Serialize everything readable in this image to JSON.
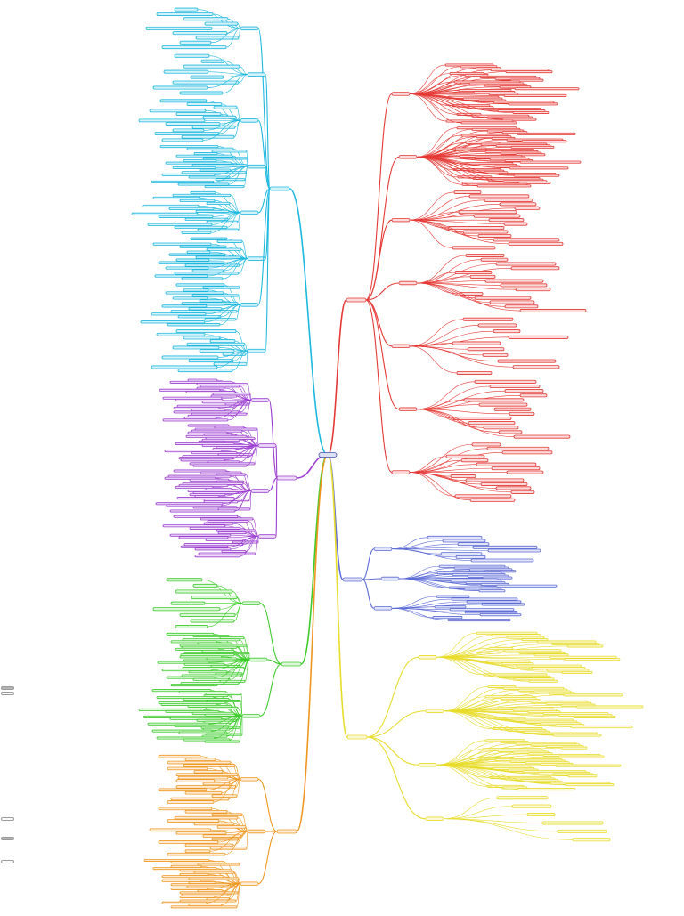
{
  "canvas": {
    "background": "#ffffff"
  },
  "central_topic": {
    "label": "",
    "color": "#3f51b5"
  },
  "main_branches": [
    {
      "id": "branch-cyan",
      "label": "",
      "color": "#1cb8e0",
      "side": "left",
      "groups": [
        {
          "label": "",
          "children": [
            "",
            "",
            "",
            "",
            "",
            "",
            "",
            "",
            ""
          ]
        },
        {
          "label": "",
          "children": [
            "",
            "",
            "",
            "",
            "",
            "",
            "",
            ""
          ]
        },
        {
          "label": "",
          "children": [
            "",
            "",
            "",
            "",
            "",
            "",
            "",
            "",
            "",
            "",
            "",
            "",
            ""
          ]
        },
        {
          "label": "",
          "children": [
            "",
            "",
            "",
            "",
            "",
            "",
            "",
            "",
            "",
            "",
            "",
            "",
            "",
            "",
            "",
            "",
            "",
            ""
          ]
        },
        {
          "label": "",
          "children": [
            "",
            "",
            "",
            "",
            "",
            "",
            "",
            "",
            "",
            "",
            "",
            "",
            "",
            "",
            "",
            ""
          ]
        },
        {
          "label": "",
          "children": [
            "",
            "",
            "",
            "",
            "",
            "",
            "",
            "",
            "",
            "",
            "",
            "",
            "",
            "",
            "",
            ""
          ]
        },
        {
          "label": "",
          "children": [
            "",
            "",
            "",
            "",
            "",
            "",
            "",
            "",
            "",
            "",
            "",
            "",
            "",
            "",
            "",
            ""
          ]
        },
        {
          "label": "",
          "children": [
            "",
            "",
            "",
            "",
            "",
            "",
            "",
            "",
            "",
            "",
            "",
            "",
            ""
          ]
        }
      ]
    },
    {
      "id": "branch-purple",
      "label": "",
      "color": "#9c3fd0",
      "side": "left",
      "groups": [
        {
          "label": "",
          "children": [
            "",
            "",
            "",
            "",
            "",
            "",
            "",
            "",
            "",
            "",
            "",
            "",
            "",
            "",
            "",
            "",
            "",
            "",
            "",
            "",
            ""
          ]
        },
        {
          "label": "",
          "children": [
            "",
            "",
            "",
            "",
            "",
            "",
            "",
            "",
            "",
            "",
            "",
            "",
            "",
            "",
            "",
            "",
            "",
            "",
            "",
            "",
            "",
            "",
            ""
          ]
        },
        {
          "label": "",
          "children": [
            "",
            "",
            "",
            "",
            "",
            "",
            "",
            "",
            "",
            "",
            "",
            "",
            "",
            "",
            "",
            "",
            "",
            "",
            "",
            "",
            "",
            "",
            ""
          ]
        },
        {
          "label": "",
          "children": [
            "",
            "",
            "",
            "",
            "",
            "",
            "",
            "",
            "",
            "",
            "",
            "",
            "",
            "",
            "",
            "",
            "",
            ""
          ]
        }
      ]
    },
    {
      "id": "branch-green",
      "label": "",
      "color": "#3ccc2a",
      "side": "left",
      "groups": [
        {
          "label": "",
          "children": [
            "",
            "",
            "",
            "",
            "",
            "",
            "",
            "",
            ""
          ]
        },
        {
          "label": "",
          "children": [
            "",
            "",
            "",
            "",
            "",
            "",
            "",
            "",
            "",
            "",
            "",
            "",
            "",
            "",
            "",
            "",
            "",
            "",
            "",
            "",
            "",
            "",
            "",
            "",
            "",
            "",
            "",
            ""
          ]
        },
        {
          "label": "",
          "children": [
            "",
            "",
            "",
            "",
            "",
            "",
            "",
            "",
            "",
            "",
            "",
            "",
            "",
            "",
            "",
            "",
            "",
            "",
            "",
            "",
            "",
            "",
            "",
            "",
            "",
            "",
            "",
            "",
            "",
            ""
          ]
        }
      ]
    },
    {
      "id": "branch-orange",
      "label": "",
      "color": "#f0961e",
      "side": "left",
      "groups": [
        {
          "label": "",
          "children": [
            "",
            "",
            "",
            "",
            "",
            "",
            "",
            "",
            "",
            "",
            "",
            "",
            "",
            "",
            "",
            ""
          ]
        },
        {
          "label": "",
          "children": [
            "",
            "",
            "",
            "",
            "",
            "",
            "",
            "",
            "",
            "",
            "",
            "",
            "",
            "",
            "",
            ""
          ]
        },
        {
          "label": "",
          "children": [
            "",
            "",
            "",
            "",
            "",
            "",
            "",
            "",
            "",
            "",
            "",
            "",
            "",
            "",
            "",
            "",
            "",
            "",
            "",
            "",
            "",
            "",
            "",
            ""
          ]
        }
      ]
    },
    {
      "id": "branch-red",
      "label": "",
      "color": "#e53935",
      "side": "right",
      "groups": [
        {
          "label": "",
          "children": [
            "",
            "",
            "",
            "",
            "",
            "",
            "",
            "",
            "",
            "",
            "",
            "",
            "",
            "",
            "",
            "",
            "",
            "",
            "",
            "",
            "",
            "",
            "",
            "",
            "",
            "",
            "",
            "",
            "",
            "",
            "",
            "",
            "",
            "",
            ""
          ]
        },
        {
          "label": "",
          "children": [
            "",
            "",
            "",
            "",
            "",
            "",
            "",
            "",
            "",
            "",
            "",
            "",
            "",
            "",
            "",
            "",
            "",
            "",
            "",
            "",
            "",
            "",
            "",
            "",
            "",
            "",
            "",
            "",
            "",
            "",
            "",
            "",
            "",
            "",
            "",
            "",
            "",
            "",
            "",
            ""
          ]
        },
        {
          "label": "",
          "children": [
            "",
            "",
            "",
            "",
            "",
            "",
            "",
            "",
            "",
            "",
            "",
            "",
            "",
            "",
            ""
          ]
        },
        {
          "label": "",
          "children": [
            "",
            "",
            "",
            "",
            "",
            "",
            "",
            "",
            "",
            "",
            "",
            "",
            "",
            ""
          ]
        },
        {
          "label": "",
          "children": [
            "",
            "",
            "",
            "",
            "",
            "",
            "",
            "",
            "",
            ""
          ]
        },
        {
          "label": "",
          "children": [
            "",
            "",
            "",
            "",
            "",
            "",
            "",
            "",
            "",
            "",
            "",
            "",
            ""
          ]
        },
        {
          "label": "",
          "children": [
            "",
            "",
            "",
            "",
            "",
            "",
            "",
            "",
            "",
            "",
            "",
            "",
            "",
            "",
            ""
          ]
        }
      ]
    },
    {
      "id": "branch-blue",
      "label": "",
      "color": "#5c6bd6",
      "side": "right",
      "groups": [
        {
          "label": "",
          "children": [
            "",
            "",
            "",
            "",
            "",
            "",
            "",
            ""
          ]
        },
        {
          "label": "",
          "children": [
            "",
            "",
            "",
            "",
            "",
            "",
            "",
            "",
            "",
            "",
            "",
            "",
            "",
            "",
            "",
            ""
          ]
        },
        {
          "label": "",
          "children": [
            "",
            "",
            "",
            "",
            "",
            "",
            "",
            "",
            "",
            ""
          ]
        }
      ]
    },
    {
      "id": "branch-yellow",
      "label": "",
      "color": "#e8dc2a",
      "side": "right",
      "groups": [
        {
          "label": "",
          "children": [
            "",
            "",
            "",
            "",
            "",
            "",
            "",
            "",
            "",
            "",
            "",
            "",
            "",
            "",
            "",
            "",
            "",
            "",
            "",
            "",
            "",
            "",
            ""
          ]
        },
        {
          "label": "",
          "children": [
            "",
            "",
            "",
            "",
            "",
            "",
            "",
            "",
            "",
            "",
            "",
            "",
            "",
            "",
            "",
            "",
            "",
            "",
            "",
            "",
            "",
            "",
            "",
            "",
            "",
            "",
            "",
            "",
            "",
            ""
          ]
        },
        {
          "label": "",
          "children": [
            "",
            "",
            "",
            "",
            "",
            "",
            "",
            "",
            "",
            "",
            "",
            "",
            "",
            "",
            "",
            "",
            "",
            "",
            "",
            "",
            "",
            "",
            "",
            "",
            "",
            "",
            "",
            "",
            "",
            "",
            "",
            "",
            "",
            ""
          ]
        },
        {
          "label": "",
          "children": [
            "",
            "",
            "",
            "",
            "",
            ""
          ]
        }
      ]
    }
  ],
  "side_widgets": [
    {
      "name": "side-widget-1",
      "filled": true
    },
    {
      "name": "side-widget-2",
      "filled": false
    },
    {
      "name": "side-widget-3",
      "filled": false
    },
    {
      "name": "side-widget-4",
      "filled": true
    },
    {
      "name": "side-widget-5",
      "filled": false
    }
  ]
}
